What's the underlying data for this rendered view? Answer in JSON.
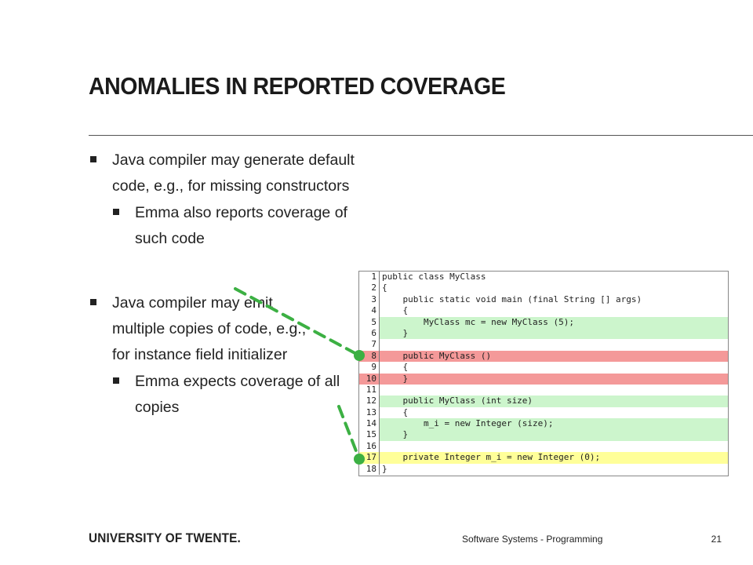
{
  "slide": {
    "title": "ANOMALIES IN REPORTED COVERAGE",
    "bullets": [
      {
        "level": 1,
        "text": "Java compiler may generate default code, e.g., for missing constructors"
      },
      {
        "level": 2,
        "text": "Emma also reports coverage of such code"
      },
      {
        "level": 1,
        "text": "Java compiler may emit multiple copies of code, e.g., for instance field initializer"
      },
      {
        "level": 2,
        "text": "Emma expects coverage of all copies"
      }
    ]
  },
  "code_listing": {
    "colors": {
      "covered": "#ccf5cc",
      "uncovered": "#f49999",
      "partial": "#ffff99",
      "connector": "#3cb043"
    },
    "lines": [
      {
        "num": "1",
        "code": "public class MyClass",
        "status": "none"
      },
      {
        "num": "2",
        "code": "{",
        "status": "none"
      },
      {
        "num": "3",
        "code": "    public static void main (final String [] args)",
        "status": "none"
      },
      {
        "num": "4",
        "code": "    {",
        "status": "none"
      },
      {
        "num": "5",
        "code": "        MyClass mc = new MyClass (5);",
        "status": "green"
      },
      {
        "num": "6",
        "code": "    }",
        "status": "green"
      },
      {
        "num": "7",
        "code": "",
        "status": "none"
      },
      {
        "num": "8",
        "code": "    public MyClass ()",
        "status": "red"
      },
      {
        "num": "9",
        "code": "    {",
        "status": "none"
      },
      {
        "num": "10",
        "code": "    }",
        "status": "red"
      },
      {
        "num": "11",
        "code": "",
        "status": "none"
      },
      {
        "num": "12",
        "code": "    public MyClass (int size)",
        "status": "green"
      },
      {
        "num": "13",
        "code": "    {",
        "status": "none"
      },
      {
        "num": "14",
        "code": "        m_i = new Integer (size);",
        "status": "green"
      },
      {
        "num": "15",
        "code": "    }",
        "status": "green"
      },
      {
        "num": "16",
        "code": "",
        "status": "none"
      },
      {
        "num": "17",
        "code": "    private Integer m_i = new Integer (0);",
        "status": "yellow"
      },
      {
        "num": "18",
        "code": "}",
        "status": "none"
      }
    ]
  },
  "footer": {
    "logo_text": "UNIVERSITY OF TWENTE.",
    "course": "Software Systems - Programming",
    "page_number": "21"
  }
}
